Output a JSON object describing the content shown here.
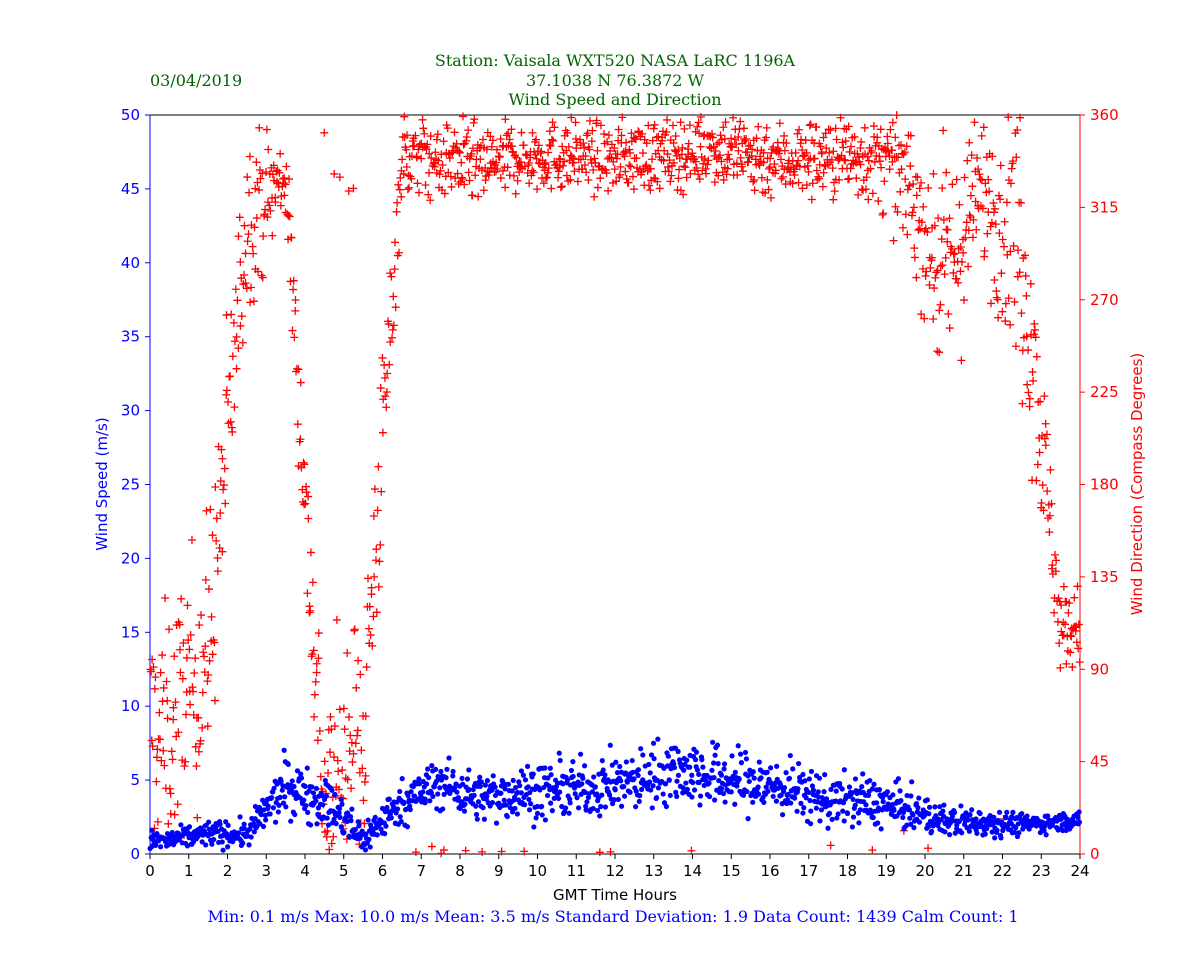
{
  "header": {
    "date": "03/04/2019",
    "station": "Station:  Vaisala WXT520  NASA LaRC 1196A",
    "coords": "37.1038 N 76.3872 W",
    "subtitle": "Wind Speed and Direction"
  },
  "footer": {
    "stats": "Min: 0.1 m/s   Max: 10.0 m/s   Mean: 3.5 m/s  Standard Deviation: 1.9  Data Count: 1439  Calm Count:  1"
  },
  "colors": {
    "title": "#006400",
    "speed": "#0000ff",
    "direction": "#ff0000",
    "axis": "#000000",
    "stats": "#0000ff"
  },
  "chart_data": {
    "type": "scatter",
    "title": "Wind Speed and Direction",
    "xlabel": "GMT Time Hours",
    "ylabel": "Wind Speed (m/s)",
    "y2label": "Wind Direction (Compass Degrees)",
    "xlim": [
      0,
      24
    ],
    "ylim": [
      0,
      50
    ],
    "y2lim": [
      0,
      360
    ],
    "xticks": [
      0,
      1,
      2,
      3,
      4,
      5,
      6,
      7,
      8,
      9,
      10,
      11,
      12,
      13,
      14,
      15,
      16,
      17,
      18,
      19,
      20,
      21,
      22,
      23,
      24
    ],
    "yticks": [
      0,
      5,
      10,
      15,
      20,
      25,
      30,
      35,
      40,
      45,
      50
    ],
    "y2ticks": [
      0,
      45,
      90,
      135,
      180,
      225,
      270,
      315,
      360
    ],
    "grid": false,
    "samples_per_hour": 60,
    "series": [
      {
        "name": "Wind Speed",
        "axis": "left",
        "marker": "dot",
        "hourly_mean": [
          0.9,
          1.4,
          1.3,
          4.6,
          3.6,
          1.0,
          3.5,
          4.8,
          3.8,
          4.2,
          4.3,
          4.5,
          4.9,
          5.8,
          5.2,
          4.8,
          4.4,
          3.6,
          3.6,
          3.0,
          2.2,
          2.2,
          2.0,
          2.2
        ],
        "hourly_spread": [
          0.5,
          0.6,
          0.6,
          1.3,
          1.2,
          0.8,
          1.0,
          1.2,
          1.1,
          1.3,
          1.3,
          1.3,
          1.4,
          1.6,
          1.5,
          1.5,
          1.3,
          1.2,
          1.2,
          1.0,
          0.7,
          0.7,
          0.5,
          0.4
        ],
        "min": 0.1,
        "max": 10.0
      },
      {
        "name": "Wind Direction",
        "axis": "right",
        "marker": "plus",
        "hourly_mean": [
          60,
          100,
          310,
          330,
          20,
          60,
          340,
          340,
          335,
          340,
          340,
          340,
          340,
          340,
          345,
          340,
          338,
          340,
          340,
          330,
          280,
          325,
          300,
          110
        ],
        "hourly_spread": [
          40,
          45,
          30,
          15,
          40,
          50,
          15,
          15,
          15,
          12,
          12,
          12,
          12,
          12,
          12,
          15,
          12,
          15,
          15,
          20,
          40,
          25,
          50,
          15
        ]
      }
    ]
  }
}
